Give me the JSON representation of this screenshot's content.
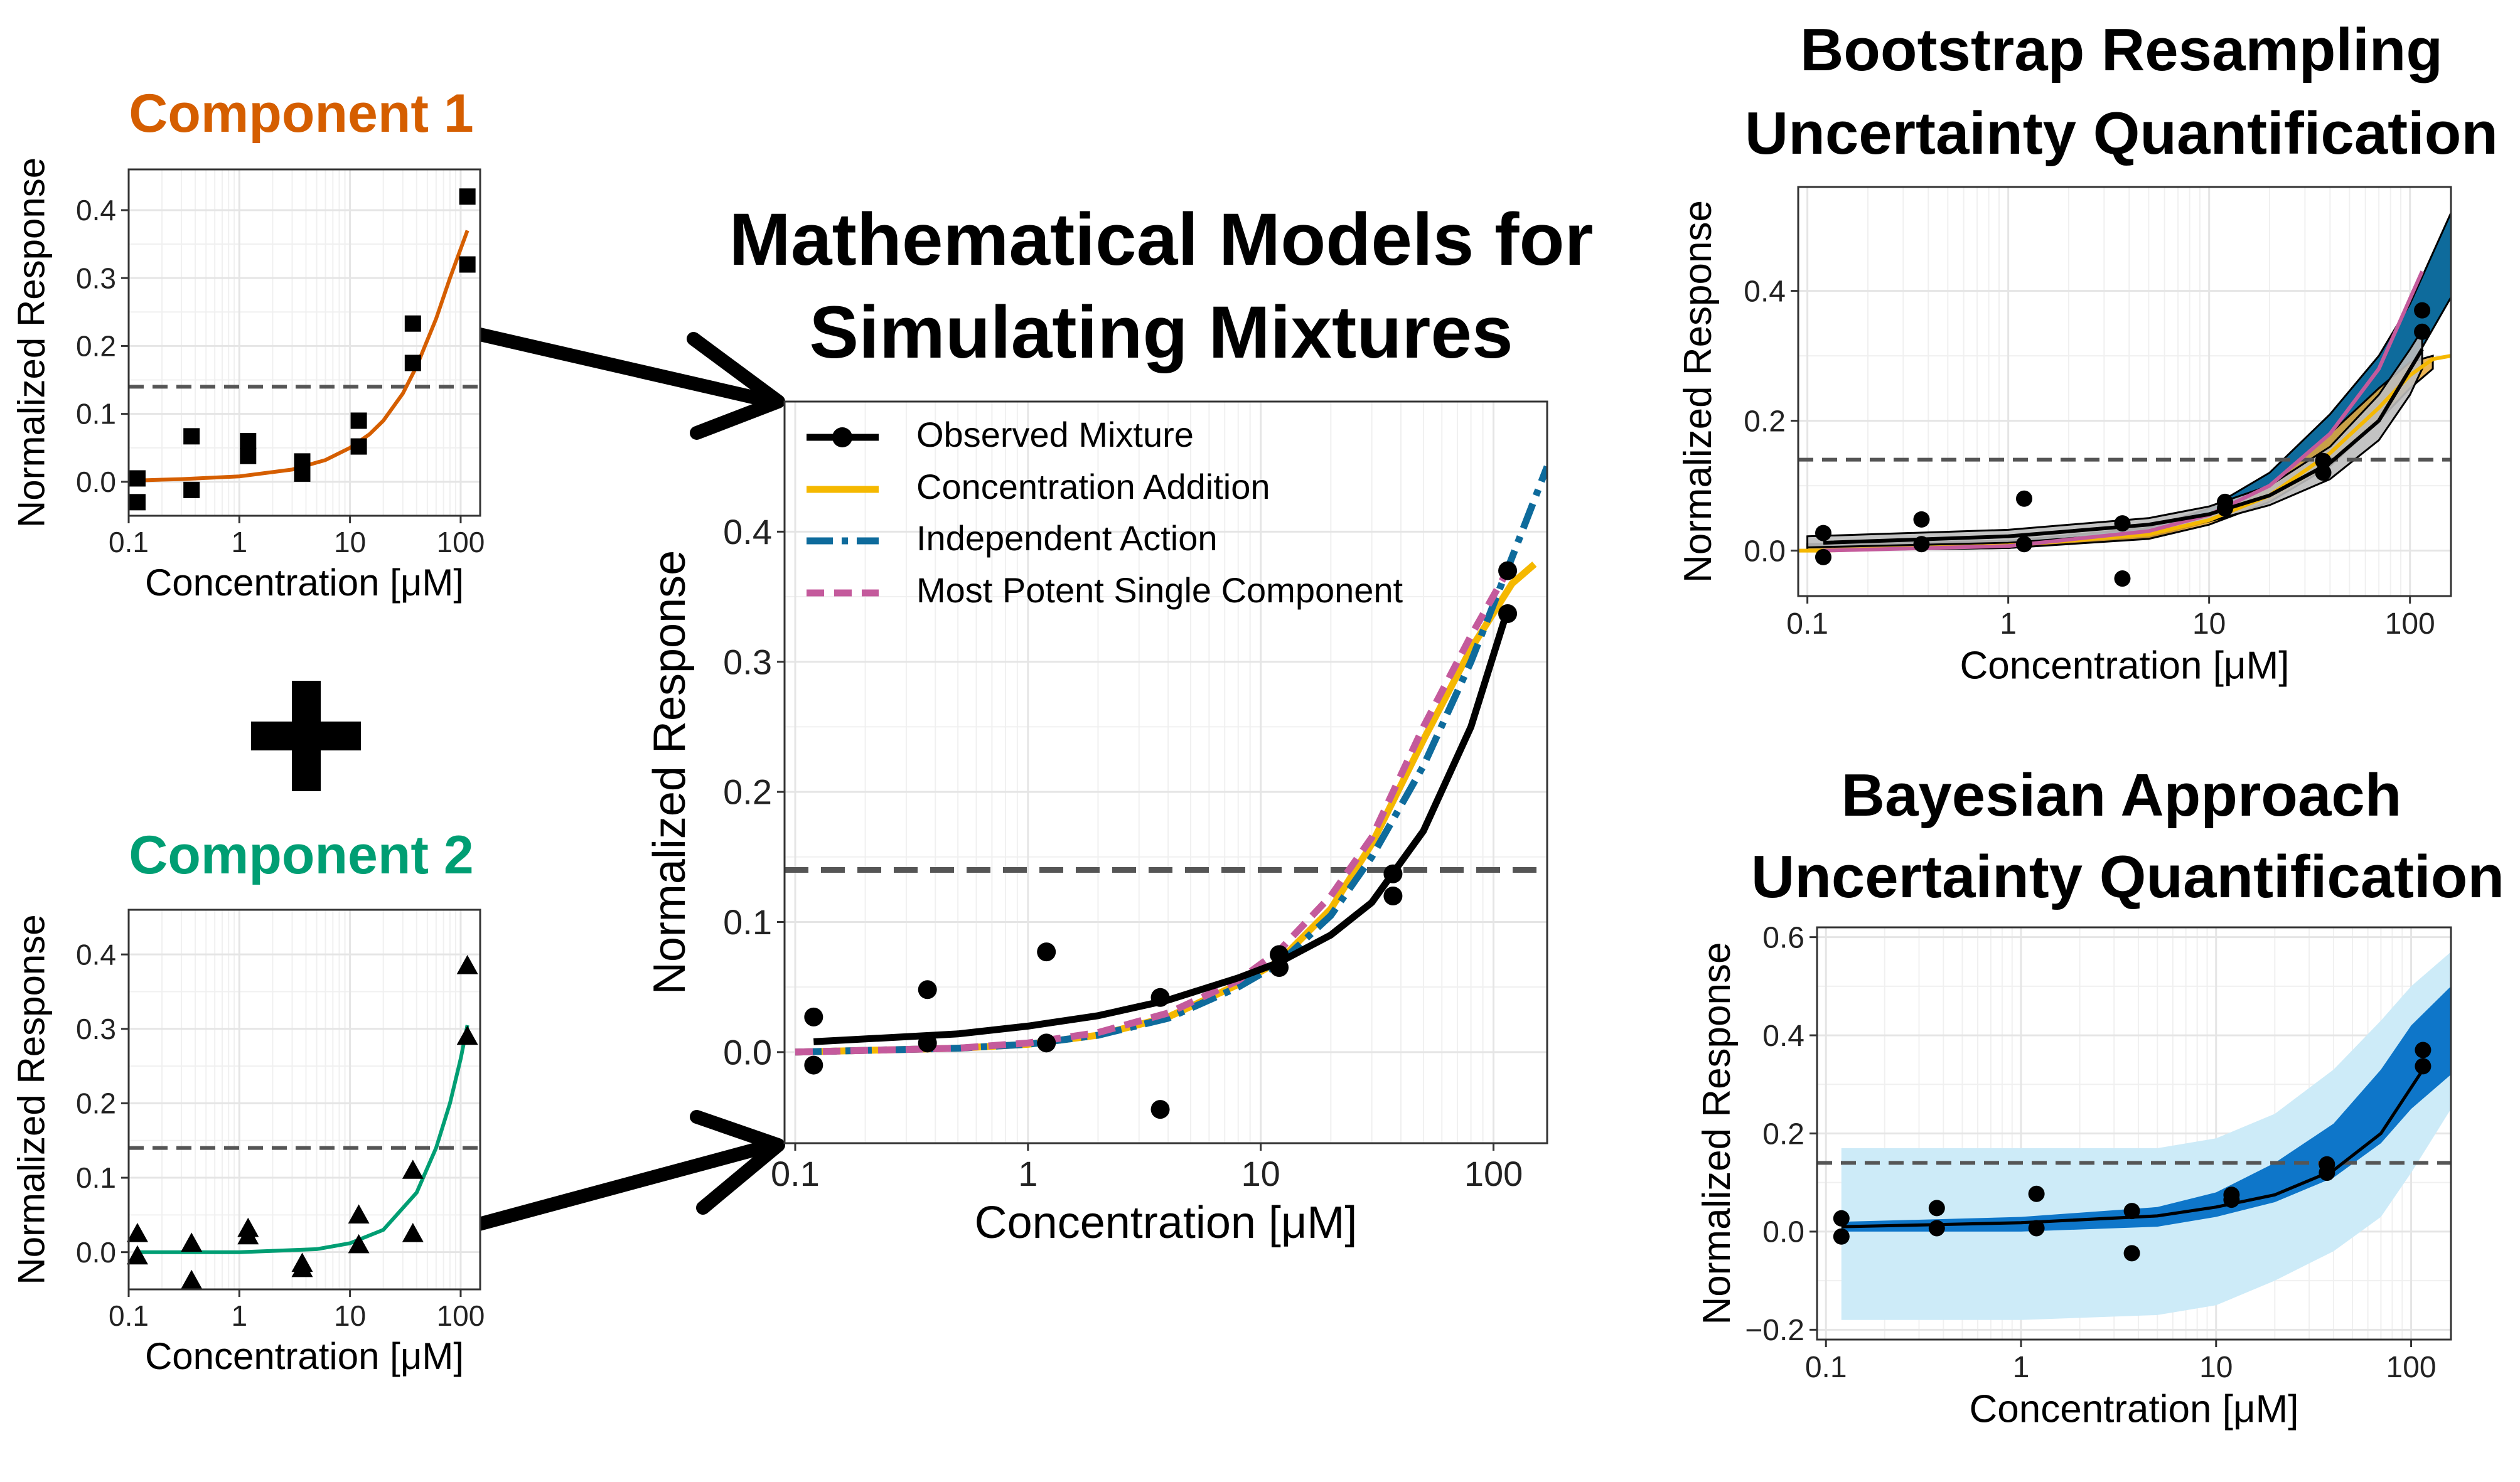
{
  "colors": {
    "component1": "#D55E00",
    "component2": "#009E73",
    "observed": "#000000",
    "ca": "#F5B800",
    "ia": "#0E6B9C",
    "mp": "#C45A9C",
    "threshold": "#555555",
    "grid": "#E5E5E5",
    "bayes_inner": "#0E76C9",
    "bayes_outer": "#CDEBF8"
  },
  "main_title": [
    "Mathematical Models for",
    "Simulating Mixtures"
  ],
  "bootstrap_title": [
    "Bootstrap Resampling",
    "Uncertainty Quantification"
  ],
  "bayesian_title": [
    "Bayesian Approach",
    "Uncertainty Quantification"
  ],
  "component1_title": "Component 1",
  "component2_title": "Component 2",
  "plus_sign": "+",
  "chart_data": [
    {
      "id": "component1",
      "type": "scatter",
      "title": "Component 1",
      "xlabel": "Concentration [μM]",
      "ylabel": "Normalized Response",
      "xscale": "log",
      "xlim": [
        0.1,
        150
      ],
      "ylim": [
        -0.05,
        0.46
      ],
      "xticks": [
        0.1,
        1,
        10,
        100
      ],
      "xtick_labels": [
        "0.1",
        "1",
        "10",
        "100"
      ],
      "yticks": [
        0,
        0.1,
        0.2,
        0.3,
        0.4
      ],
      "ytick_labels": [
        "0.0",
        "0.1",
        "0.2",
        "0.3",
        "0.4"
      ],
      "threshold": 0.14,
      "marker": "square",
      "points": [
        [
          0.12,
          0.005
        ],
        [
          0.12,
          -0.03
        ],
        [
          0.37,
          0.067
        ],
        [
          0.37,
          -0.012
        ],
        [
          1.2,
          0.06
        ],
        [
          1.2,
          0.038
        ],
        [
          3.7,
          0.03
        ],
        [
          3.7,
          0.012
        ],
        [
          12,
          0.09
        ],
        [
          12,
          0.052
        ],
        [
          37,
          0.233
        ],
        [
          37,
          0.175
        ],
        [
          115,
          0.42
        ],
        [
          115,
          0.32
        ]
      ],
      "curve": {
        "x": [
          0.12,
          0.3,
          1,
          3,
          6,
          10,
          15,
          20,
          30,
          40,
          60,
          80,
          115
        ],
        "y": [
          0.002,
          0.004,
          0.008,
          0.018,
          0.032,
          0.05,
          0.07,
          0.09,
          0.13,
          0.17,
          0.24,
          0.3,
          0.37
        ]
      }
    },
    {
      "id": "component2",
      "type": "scatter",
      "title": "Component 2",
      "xlabel": "Concentration [μM]",
      "ylabel": "Normalized Response",
      "xscale": "log",
      "xlim": [
        0.1,
        150
      ],
      "ylim": [
        -0.05,
        0.46
      ],
      "xticks": [
        0.1,
        1,
        10,
        100
      ],
      "xtick_labels": [
        "0.1",
        "1",
        "10",
        "100"
      ],
      "yticks": [
        0,
        0.1,
        0.2,
        0.3,
        0.4
      ],
      "ytick_labels": [
        "0.0",
        "0.1",
        "0.2",
        "0.3",
        "0.4"
      ],
      "threshold": 0.14,
      "marker": "triangle",
      "points": [
        [
          0.12,
          0.025
        ],
        [
          0.12,
          -0.005
        ],
        [
          0.37,
          0.012
        ],
        [
          0.37,
          -0.038
        ],
        [
          1.2,
          0.032
        ],
        [
          1.2,
          0.022
        ],
        [
          3.7,
          -0.015
        ],
        [
          3.7,
          -0.022
        ],
        [
          12,
          0.05
        ],
        [
          12,
          0.01
        ],
        [
          37,
          0.11
        ],
        [
          37,
          0.025
        ],
        [
          115,
          0.385
        ],
        [
          115,
          0.29
        ]
      ],
      "curve": {
        "x": [
          0.12,
          1,
          5,
          10,
          20,
          40,
          60,
          80,
          100,
          115
        ],
        "y": [
          0.0,
          0.0,
          0.004,
          0.012,
          0.03,
          0.08,
          0.14,
          0.2,
          0.26,
          0.305
        ]
      }
    },
    {
      "id": "mixture",
      "type": "line",
      "xlabel": "Concentration [μM]",
      "ylabel": "Normalized Response",
      "xscale": "log",
      "xlim": [
        0.09,
        170
      ],
      "ylim": [
        -0.07,
        0.5
      ],
      "xticks": [
        0.1,
        1,
        10,
        100
      ],
      "xtick_labels": [
        "0.1",
        "1",
        "10",
        "100"
      ],
      "yticks": [
        0,
        0.1,
        0.2,
        0.3,
        0.4
      ],
      "ytick_labels": [
        "0.0",
        "0.1",
        "0.2",
        "0.3",
        "0.4"
      ],
      "threshold": 0.14,
      "points": [
        [
          0.12,
          0.027
        ],
        [
          0.12,
          -0.01
        ],
        [
          0.37,
          0.048
        ],
        [
          0.37,
          0.007
        ],
        [
          1.2,
          0.077
        ],
        [
          1.2,
          0.007
        ],
        [
          3.7,
          0.042
        ],
        [
          3.7,
          -0.044
        ],
        [
          12,
          0.075
        ],
        [
          12,
          0.065
        ],
        [
          37,
          0.137
        ],
        [
          37,
          0.12
        ],
        [
          115,
          0.37
        ],
        [
          115,
          0.337
        ]
      ],
      "series": [
        {
          "name": "Observed Mixture",
          "style": "solid-points",
          "x": [
            0.12,
            0.5,
            1,
            2,
            4,
            8,
            12,
            20,
            30,
            50,
            80,
            115
          ],
          "y": [
            0.008,
            0.014,
            0.02,
            0.028,
            0.04,
            0.057,
            0.069,
            0.09,
            0.115,
            0.17,
            0.25,
            0.34
          ]
        },
        {
          "name": "Concentration Addition",
          "style": "solid",
          "x": [
            0.1,
            0.5,
            1,
            2,
            4,
            8,
            12,
            20,
            30,
            50,
            80,
            120,
            150
          ],
          "y": [
            0.0,
            0.003,
            0.006,
            0.013,
            0.027,
            0.052,
            0.07,
            0.11,
            0.16,
            0.24,
            0.31,
            0.36,
            0.375
          ]
        },
        {
          "name": "Independent Action",
          "style": "dashdot",
          "x": [
            0.1,
            0.5,
            1,
            2,
            4,
            8,
            12,
            20,
            30,
            50,
            80,
            120,
            170
          ],
          "y": [
            0.0,
            0.003,
            0.006,
            0.013,
            0.026,
            0.05,
            0.068,
            0.105,
            0.15,
            0.22,
            0.3,
            0.38,
            0.45
          ]
        },
        {
          "name": "Most Potent Single Component",
          "style": "dashed",
          "x": [
            0.1,
            0.5,
            1,
            2,
            4,
            8,
            12,
            20,
            30,
            50,
            80,
            115
          ],
          "y": [
            0.0,
            0.003,
            0.007,
            0.015,
            0.03,
            0.055,
            0.078,
            0.12,
            0.165,
            0.25,
            0.32,
            0.37
          ]
        }
      ]
    },
    {
      "id": "bootstrap",
      "type": "area",
      "xlabel": "Concentration [μM]",
      "ylabel": "Normalized Response",
      "xscale": "log",
      "xlim": [
        0.09,
        160
      ],
      "ylim": [
        -0.07,
        0.56
      ],
      "xticks": [
        0.1,
        1,
        10,
        100
      ],
      "xtick_labels": [
        "0.1",
        "1",
        "10",
        "100"
      ],
      "yticks": [
        0,
        0.2,
        0.4
      ],
      "ytick_labels": [
        "0.0",
        "0.2",
        "0.4"
      ],
      "threshold": 0.14,
      "points": [
        [
          0.12,
          0.027
        ],
        [
          0.12,
          -0.01
        ],
        [
          0.37,
          0.048
        ],
        [
          0.37,
          0.01
        ],
        [
          1.2,
          0.08
        ],
        [
          1.2,
          0.01
        ],
        [
          3.7,
          0.042
        ],
        [
          3.7,
          -0.043
        ],
        [
          12,
          0.075
        ],
        [
          12,
          0.065
        ],
        [
          37,
          0.138
        ],
        [
          37,
          0.12
        ],
        [
          115,
          0.37
        ],
        [
          115,
          0.337
        ]
      ],
      "bands": [
        {
          "name": "Independent Action",
          "x": [
            0.1,
            1,
            5,
            10,
            20,
            40,
            70,
            100,
            160
          ],
          "upper": [
            0.01,
            0.015,
            0.035,
            0.065,
            0.12,
            0.21,
            0.3,
            0.38,
            0.52
          ],
          "lower": [
            0.0,
            0.004,
            0.02,
            0.045,
            0.085,
            0.15,
            0.22,
            0.28,
            0.39
          ]
        },
        {
          "name": "Concentration Addition",
          "x": [
            0.1,
            1,
            5,
            10,
            20,
            40,
            70,
            100,
            130
          ],
          "upper": [
            0.008,
            0.012,
            0.03,
            0.055,
            0.1,
            0.18,
            0.25,
            0.29,
            0.3
          ],
          "lower": [
            0.0,
            0.004,
            0.018,
            0.04,
            0.075,
            0.13,
            0.2,
            0.25,
            0.28
          ]
        },
        {
          "name": "Observed Mixture",
          "x": [
            0.1,
            1,
            5,
            10,
            20,
            40,
            70,
            100,
            115
          ],
          "upper": [
            0.022,
            0.032,
            0.05,
            0.068,
            0.1,
            0.16,
            0.24,
            0.31,
            0.34
          ],
          "lower": [
            0.005,
            0.012,
            0.028,
            0.045,
            0.07,
            0.11,
            0.17,
            0.24,
            0.28
          ]
        }
      ],
      "series": [
        {
          "name": "Concentration Addition",
          "x": [
            0.09,
            0.12,
            1,
            5,
            10,
            20,
            40,
            70,
            100,
            130,
            160
          ],
          "y": [
            0.0,
            0.0,
            0.008,
            0.025,
            0.047,
            0.085,
            0.15,
            0.22,
            0.27,
            0.295,
            0.3
          ]
        },
        {
          "name": "Most Potent Single Component",
          "x": [
            0.12,
            1,
            5,
            10,
            20,
            40,
            70,
            115
          ],
          "y": [
            0.0,
            0.007,
            0.03,
            0.055,
            0.1,
            0.18,
            0.28,
            0.43
          ]
        },
        {
          "name": "Observed Mixture",
          "x": [
            0.12,
            1,
            5,
            10,
            20,
            40,
            70,
            115
          ],
          "y": [
            0.012,
            0.022,
            0.04,
            0.056,
            0.085,
            0.135,
            0.2,
            0.31
          ]
        }
      ]
    },
    {
      "id": "bayesian",
      "type": "area",
      "xlabel": "Concentration [μM]",
      "ylabel": "Normalized Response",
      "xscale": "log",
      "xlim": [
        0.09,
        160
      ],
      "ylim": [
        -0.22,
        0.62
      ],
      "xticks": [
        0.1,
        1,
        10,
        100
      ],
      "xtick_labels": [
        "0.1",
        "1",
        "10",
        "100"
      ],
      "yticks": [
        -0.2,
        0.0,
        0.2,
        0.4,
        0.6
      ],
      "ytick_labels": [
        "−0.2",
        "0.0",
        "0.2",
        "0.4",
        "0.6"
      ],
      "threshold": 0.14,
      "points": [
        [
          0.12,
          0.027
        ],
        [
          0.12,
          -0.01
        ],
        [
          0.37,
          0.048
        ],
        [
          0.37,
          0.007
        ],
        [
          1.2,
          0.077
        ],
        [
          1.2,
          0.007
        ],
        [
          3.7,
          0.042
        ],
        [
          3.7,
          -0.044
        ],
        [
          12,
          0.075
        ],
        [
          12,
          0.065
        ],
        [
          37,
          0.137
        ],
        [
          37,
          0.12
        ],
        [
          115,
          0.37
        ],
        [
          115,
          0.337
        ]
      ],
      "outer_band": {
        "x": [
          0.12,
          1,
          5,
          10,
          20,
          40,
          70,
          100,
          160
        ],
        "upper": [
          0.17,
          0.17,
          0.17,
          0.19,
          0.24,
          0.33,
          0.43,
          0.5,
          0.57
        ],
        "lower": [
          -0.18,
          -0.18,
          -0.17,
          -0.15,
          -0.1,
          -0.04,
          0.03,
          0.12,
          0.25
        ]
      },
      "inner_band": {
        "x": [
          0.12,
          1,
          5,
          10,
          20,
          40,
          70,
          100,
          160
        ],
        "upper": [
          0.02,
          0.03,
          0.05,
          0.08,
          0.14,
          0.22,
          0.33,
          0.42,
          0.5
        ],
        "lower": [
          0.0,
          0.0,
          0.01,
          0.03,
          0.06,
          0.11,
          0.18,
          0.25,
          0.32
        ]
      },
      "series": [
        {
          "name": "Observed Mixture",
          "x": [
            0.12,
            1,
            5,
            10,
            20,
            40,
            70,
            115
          ],
          "y": [
            0.01,
            0.018,
            0.032,
            0.05,
            0.075,
            0.125,
            0.2,
            0.33
          ]
        }
      ]
    }
  ]
}
